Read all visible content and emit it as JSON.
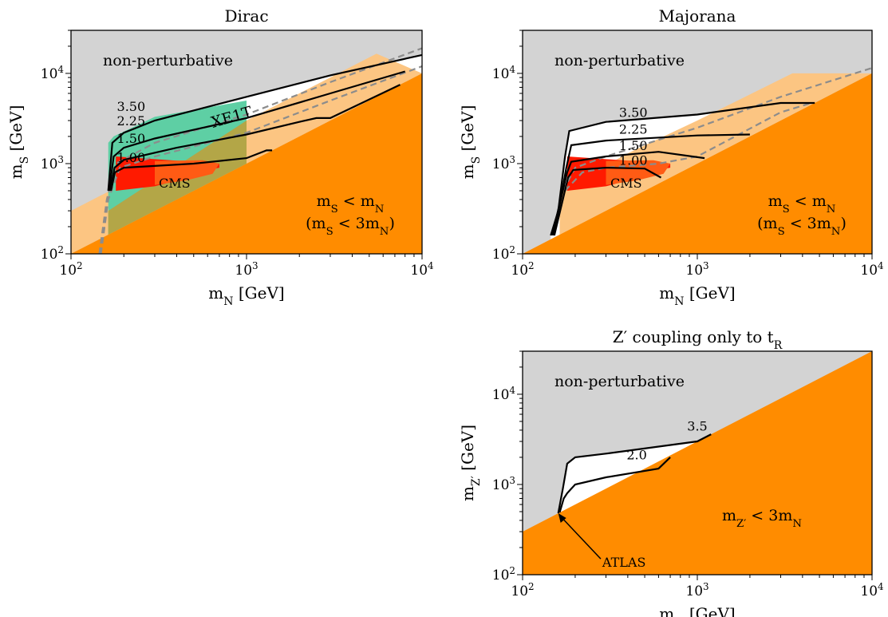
{
  "colors": {
    "nonpert": "#d3d3d3",
    "kin": "#ff8c00",
    "kin_light": "#fcc582",
    "xe1t": "#5ecfa4",
    "xe1t_overlap": "#b3a647",
    "cms_red": "#ff1a00",
    "cms_orange": "#ff5b14",
    "dashed": "#8c8c8c",
    "contour": "#000000"
  },
  "chart_data": [
    {
      "type": "area",
      "panel": "dirac",
      "title": "Dirac",
      "xlabel": "m_N [GeV]",
      "ylabel": "m_S [GeV]",
      "xscale": "log",
      "yscale": "log",
      "xlim": [
        100,
        10000
      ],
      "ylim": [
        100,
        30000
      ],
      "xticks": [
        "10^2",
        "10^3",
        "10^4"
      ],
      "yticks": [
        "10^2",
        "10^3",
        "10^4"
      ],
      "region_labels": {
        "nonpert": "non-perturbative",
        "kin1": "m_S < m_N",
        "kin2": "(m_S < 3m_N)",
        "xe1t": "XE1T",
        "cms": "CMS"
      },
      "kin_light": [
        [
          100,
          300
        ],
        [
          1000,
          3000
        ],
        [
          5500,
          16500
        ],
        [
          10000,
          10000
        ],
        [
          100,
          100
        ]
      ],
      "xe1t": [
        [
          163,
          100
        ],
        [
          163,
          1700
        ],
        [
          175,
          2000
        ],
        [
          300,
          3300
        ],
        [
          1000,
          5000
        ],
        [
          1000,
          1000
        ],
        [
          163,
          163
        ]
      ],
      "xe1t_overlap": [
        [
          163,
          163
        ],
        [
          163,
          300
        ],
        [
          1000,
          3000
        ],
        [
          1000,
          1000
        ]
      ],
      "cms": [
        [
          180,
          1200
        ],
        [
          700,
          1000
        ],
        [
          700,
          900
        ],
        [
          500,
          800
        ],
        [
          400,
          650
        ],
        [
          300,
          560
        ],
        [
          180,
          500
        ]
      ],
      "cms_orange": [
        [
          300,
          1070
        ],
        [
          560,
          1090
        ],
        [
          700,
          1000
        ],
        [
          640,
          770
        ],
        [
          450,
          650
        ],
        [
          300,
          580
        ]
      ],
      "dashed": [
        [
          [
            145,
            100
          ],
          [
            160,
            400
          ],
          [
            180,
            1000
          ],
          [
            300,
            1700
          ],
          [
            1000,
            3500
          ],
          [
            3000,
            8000
          ],
          [
            10000,
            19000
          ]
        ],
        [
          [
            148,
            100
          ],
          [
            163,
            400
          ],
          [
            190,
            900
          ],
          [
            300,
            1200
          ],
          [
            1000,
            2200
          ],
          [
            3000,
            5000
          ],
          [
            10000,
            12000
          ]
        ]
      ],
      "contours": [
        {
          "label": "3.50",
          "label_at": [
            220,
            3850
          ],
          "points": [
            [
              163,
              500
            ],
            [
              172,
              1700
            ],
            [
              200,
              2200
            ],
            [
              300,
              3000
            ],
            [
              1000,
              5500
            ],
            [
              3000,
              9500
            ],
            [
              10000,
              16000
            ]
          ]
        },
        {
          "label": "2.25",
          "label_at": [
            220,
            2650
          ],
          "points": [
            [
              165,
              500
            ],
            [
              175,
              1200
            ],
            [
              200,
              1500
            ],
            [
              300,
              1900
            ],
            [
              1000,
              3200
            ],
            [
              3000,
              6000
            ],
            [
              8000,
              10500
            ]
          ]
        },
        {
          "label": "1.50",
          "label_at": [
            220,
            1700
          ],
          "points": [
            [
              167,
              500
            ],
            [
              177,
              900
            ],
            [
              200,
              1100
            ],
            [
              400,
              1500
            ],
            [
              1000,
              2100
            ],
            [
              2000,
              2900
            ],
            [
              2500,
              3200
            ],
            [
              3000,
              3200
            ],
            [
              7500,
              7500
            ]
          ]
        },
        {
          "label": "1.00",
          "label_at": [
            220,
            1040
          ],
          "points": [
            [
              169,
              500
            ],
            [
              178,
              800
            ],
            [
              200,
              900
            ],
            [
              500,
              1000
            ],
            [
              1000,
              1150
            ],
            [
              1300,
              1400
            ],
            [
              1400,
              1400
            ]
          ]
        }
      ]
    },
    {
      "type": "area",
      "panel": "majorana",
      "title": "Majorana",
      "xlabel": "m_N [GeV]",
      "ylabel": "m_S [GeV]",
      "xscale": "log",
      "yscale": "log",
      "xlim": [
        100,
        10000
      ],
      "ylim": [
        100,
        30000
      ],
      "xticks": [
        "10^2",
        "10^3",
        "10^4"
      ],
      "yticks": [
        "10^2",
        "10^3",
        "10^4"
      ],
      "region_labels": {
        "nonpert": "non-perturbative",
        "kin1": "m_S < m_N",
        "kin2": "(m_S < 3m_N)",
        "cms": "CMS"
      },
      "kin_light": [
        [
          163,
          150
        ],
        [
          163,
          500
        ],
        [
          400,
          1300
        ],
        [
          1000,
          3000
        ],
        [
          3500,
          10000
        ],
        [
          10000,
          10000
        ],
        [
          163,
          163
        ]
      ],
      "cms": [
        [
          180,
          1200
        ],
        [
          700,
          1000
        ],
        [
          700,
          900
        ],
        [
          500,
          800
        ],
        [
          400,
          650
        ],
        [
          300,
          560
        ],
        [
          180,
          500
        ]
      ],
      "cms_orange": [
        [
          300,
          1070
        ],
        [
          560,
          1090
        ],
        [
          700,
          1000
        ],
        [
          640,
          770
        ],
        [
          450,
          650
        ],
        [
          300,
          580
        ]
      ],
      "dashed": [
        [
          [
            170,
            500
          ],
          [
            200,
            900
          ],
          [
            300,
            1200
          ],
          [
            1000,
            2500
          ],
          [
            3000,
            5500
          ],
          [
            10000,
            11500
          ]
        ],
        [
          [
            175,
            500
          ],
          [
            220,
            800
          ],
          [
            300,
            900
          ],
          [
            600,
            1000
          ],
          [
            1000,
            1200
          ],
          [
            3000,
            3700
          ],
          [
            4500,
            4700
          ]
        ]
      ],
      "contours": [
        {
          "label": "3.50",
          "label_at": [
            430,
            3300
          ],
          "points": [
            [
              145,
              160
            ],
            [
              160,
              300
            ],
            [
              175,
              1200
            ],
            [
              185,
              2300
            ],
            [
              300,
              2900
            ],
            [
              1000,
              3500
            ],
            [
              3000,
              4700
            ],
            [
              4700,
              4700
            ]
          ]
        },
        {
          "label": "2.25",
          "label_at": [
            430,
            2150
          ],
          "points": [
            [
              148,
              160
            ],
            [
              165,
              400
            ],
            [
              178,
              900
            ],
            [
              190,
              1600
            ],
            [
              300,
              1800
            ],
            [
              1000,
              2050
            ],
            [
              2000,
              2100
            ]
          ]
        },
        {
          "label": "1.50",
          "label_at": [
            430,
            1420
          ],
          "points": [
            [
              150,
              160
            ],
            [
              168,
              450
            ],
            [
              180,
              800
            ],
            [
              190,
              1050
            ],
            [
              300,
              1200
            ],
            [
              600,
              1350
            ],
            [
              1100,
              1150
            ]
          ]
        },
        {
          "label": "1.00",
          "label_at": [
            430,
            970
          ],
          "points": [
            [
              152,
              160
            ],
            [
              170,
              400
            ],
            [
              182,
              700
            ],
            [
              195,
              850
            ],
            [
              300,
              900
            ],
            [
              500,
              880
            ],
            [
              620,
              700
            ]
          ]
        }
      ]
    },
    {
      "type": "area",
      "panel": "zprime",
      "title": "Z′ coupling only to t_R",
      "xlabel": "m_N [GeV]",
      "ylabel": "m_Z′ [GeV]",
      "xscale": "log",
      "yscale": "log",
      "xlim": [
        100,
        10000
      ],
      "ylim": [
        100,
        30000
      ],
      "xticks": [
        "10^2",
        "10^3",
        "10^4"
      ],
      "yticks": [
        "10^2",
        "10^3",
        "10^4"
      ],
      "region_labels": {
        "nonpert": "non-perturbative",
        "kin1": "m_Z′ < 3m_N",
        "atlas": "ATLAS"
      },
      "contours": [
        {
          "label": "3.5",
          "label_at": [
            1000,
            3950
          ],
          "points": [
            [
              160,
              480
            ],
            [
              170,
              900
            ],
            [
              180,
              1700
            ],
            [
              200,
              2000
            ],
            [
              300,
              2200
            ],
            [
              1000,
              3000
            ],
            [
              1200,
              3600
            ]
          ]
        },
        {
          "label": "2.0",
          "label_at": [
            450,
            1900
          ],
          "points": [
            [
              163,
              490
            ],
            [
              172,
              700
            ],
            [
              180,
              800
            ],
            [
              200,
              1000
            ],
            [
              300,
              1200
            ],
            [
              600,
              1500
            ],
            [
              700,
              2000
            ]
          ]
        }
      ],
      "atlas_arrow": {
        "from": [
          280,
          150
        ],
        "to": [
          160,
          480
        ]
      }
    }
  ]
}
